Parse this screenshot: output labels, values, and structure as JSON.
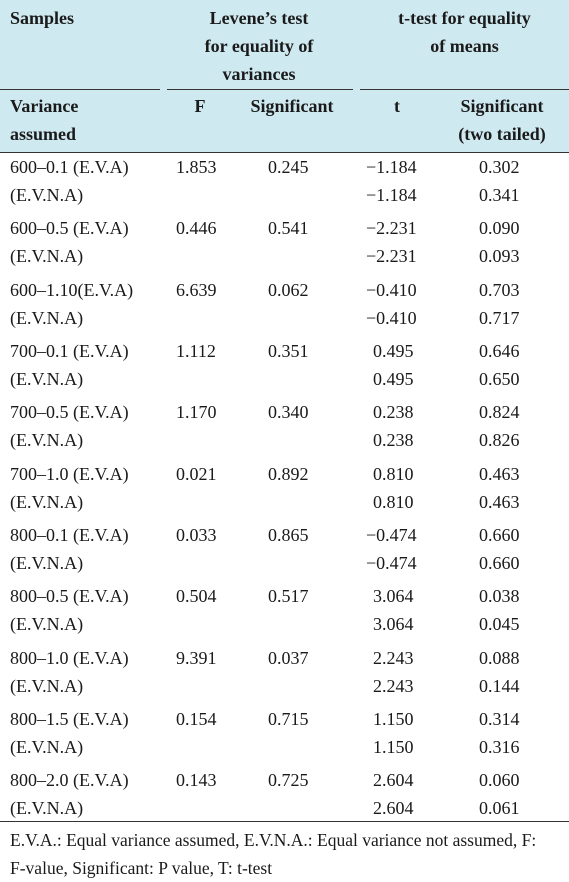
{
  "header": {
    "samples": "Samples",
    "levene_line1": "Levene’s test",
    "levene_line2": "for equality of",
    "levene_line3": "variances",
    "ttest_line1": "t-test for equality",
    "ttest_line2": "of means",
    "variance_line1": "Variance",
    "variance_line2": "assumed",
    "f": "F",
    "significant": "Significant",
    "t": "t",
    "sig_two_line1": "Significant",
    "sig_two_line2": "(two tailed)"
  },
  "rows": [
    {
      "sample": "600–0.1 (E.V.A)",
      "sample2": "(E.V.N.A)",
      "f": "1.853",
      "sig": "0.245",
      "t1": "−1.184",
      "t2": "−1.184",
      "p1": "0.302",
      "p2": "0.341"
    },
    {
      "sample": "600–0.5 (E.V.A)",
      "sample2": "(E.V.N.A)",
      "f": "0.446",
      "sig": "0.541",
      "t1": "−2.231",
      "t2": "−2.231",
      "p1": "0.090",
      "p2": "0.093"
    },
    {
      "sample": "600–1.10(E.V.A)",
      "sample2": "(E.V.N.A)",
      "f": "6.639",
      "sig": "0.062",
      "t1": "−0.410",
      "t2": "−0.410",
      "p1": "0.703",
      "p2": "0.717"
    },
    {
      "sample": "700–0.1 (E.V.A)",
      "sample2": "(E.V.N.A)",
      "f": "1.112",
      "sig": "0.351",
      "t1": "0.495",
      "t2": "0.495",
      "p1": "0.646",
      "p2": "0.650"
    },
    {
      "sample": "700–0.5 (E.V.A)",
      "sample2": "(E.V.N.A)",
      "f": "1.170",
      "sig": "0.340",
      "t1": "0.238",
      "t2": "0.238",
      "p1": "0.824",
      "p2": "0.826"
    },
    {
      "sample": "700–1.0 (E.V.A)",
      "sample2": "(E.V.N.A)",
      "f": "0.021",
      "sig": "0.892",
      "t1": "0.810",
      "t2": "0.810",
      "p1": "0.463",
      "p2": "0.463"
    },
    {
      "sample": "800–0.1 (E.V.A)",
      "sample2": "(E.V.N.A)",
      "f": "0.033",
      "sig": "0.865",
      "t1": "−0.474",
      "t2": "−0.474",
      "p1": "0.660",
      "p2": "0.660"
    },
    {
      "sample": "800–0.5 (E.V.A)",
      "sample2": "(E.V.N.A)",
      "f": "0.504",
      "sig": "0.517",
      "t1": "3.064",
      "t2": "3.064",
      "p1": "0.038",
      "p2": "0.045"
    },
    {
      "sample": "800–1.0 (E.V.A)",
      "sample2": "(E.V.N.A)",
      "f": "9.391",
      "sig": "0.037",
      "t1": "2.243",
      "t2": "2.243",
      "p1": "0.088",
      "p2": "0.144"
    },
    {
      "sample": "800–1.5 (E.V.A)",
      "sample2": "(E.V.N.A)",
      "f": "0.154",
      "sig": "0.715",
      "t1": "1.150",
      "t2": "1.150",
      "p1": "0.314",
      "p2": "0.316"
    },
    {
      "sample": "800–2.0 (E.V.A)",
      "sample2": "(E.V.N.A)",
      "f": "0.143",
      "sig": "0.725",
      "t1": "2.604",
      "t2": "2.604",
      "p1": "0.060",
      "p2": "0.061"
    }
  ],
  "footnote": "E.V.A.: Equal variance assumed, E.V.N.A.: Equal variance not assumed, F: F-value, Significant: P value, T: t-test",
  "colors": {
    "header_bg": "#cfe9f1",
    "rule": "#333333"
  }
}
